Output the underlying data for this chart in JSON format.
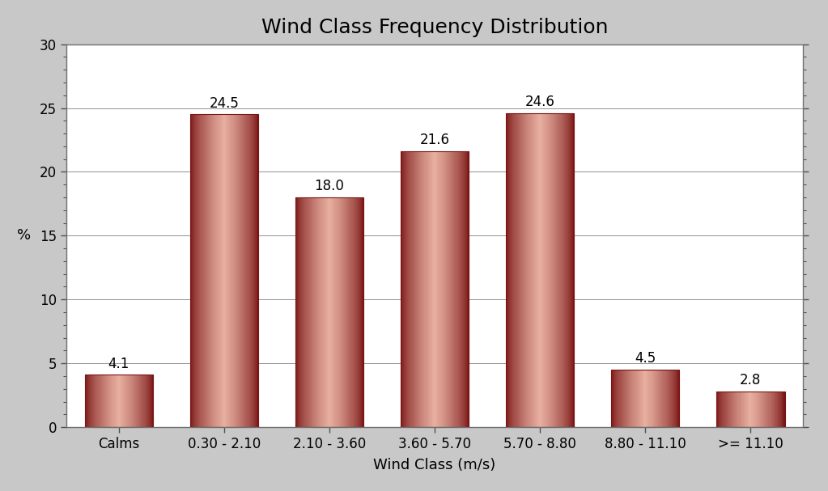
{
  "title": "Wind Class Frequency Distribution",
  "categories": [
    "Calms",
    "0.30 - 2.10",
    "2.10 - 3.60",
    "3.60 - 5.70",
    "5.70 - 8.80",
    "8.80 - 11.10",
    ">= 11.10"
  ],
  "values": [
    4.1,
    24.5,
    18.0,
    21.6,
    24.6,
    4.5,
    2.8
  ],
  "xlabel": "Wind Class (m/s)",
  "ylabel": "%",
  "ylim": [
    0,
    30
  ],
  "yticks": [
    0,
    5,
    10,
    15,
    20,
    25,
    30
  ],
  "bar_color_dark": "#7A1515",
  "bar_color_light": "#E8B0A0",
  "title_fontsize": 18,
  "label_fontsize": 13,
  "tick_fontsize": 12,
  "annotation_fontsize": 12,
  "bg_color": "#C8C8C8",
  "plot_bg_color": "#FFFFFF",
  "grid_color": "#909090",
  "bar_width": 0.65,
  "n_strips": 80
}
